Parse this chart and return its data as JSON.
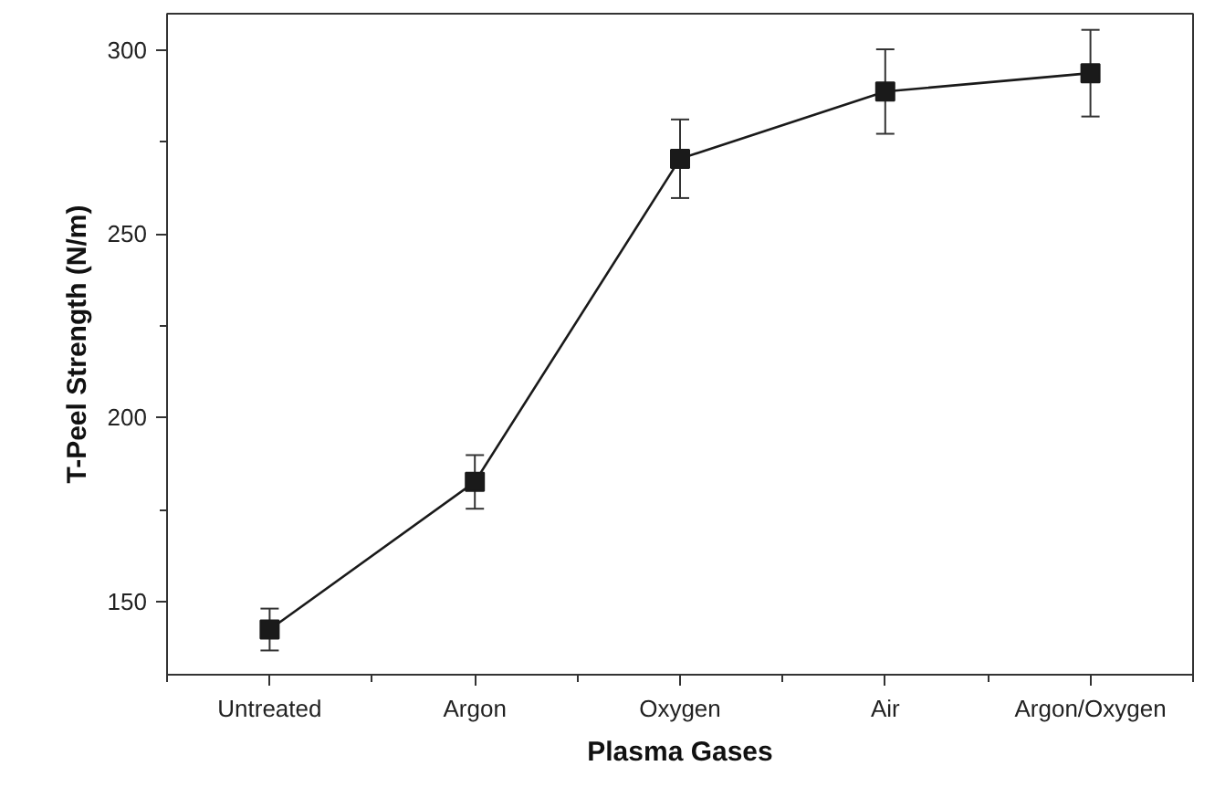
{
  "chart_data": {
    "type": "line",
    "xlabel": "Plasma Gases",
    "ylabel": "T-Peel Strength (N/m)",
    "categories": [
      "Untreated",
      "Argon",
      "Oxygen",
      "Air",
      "Argon/Oxygen"
    ],
    "series": [
      {
        "color": "#1a1a1a",
        "values": [
          142.3,
          182.5,
          270.5,
          288.8,
          293.8
        ],
        "errors": [
          5.7,
          7.3,
          10.7,
          11.5,
          11.8
        ]
      }
    ],
    "ylim": [
      130,
      310
    ],
    "yticks": [
      150,
      {
        "value": 175,
        "label": null
      },
      200,
      {
        "value": 225,
        "label": null
      },
      250,
      {
        "value": 275,
        "label": null
      },
      300
    ],
    "marker": "square",
    "line_style": "solid",
    "grid": false
  }
}
